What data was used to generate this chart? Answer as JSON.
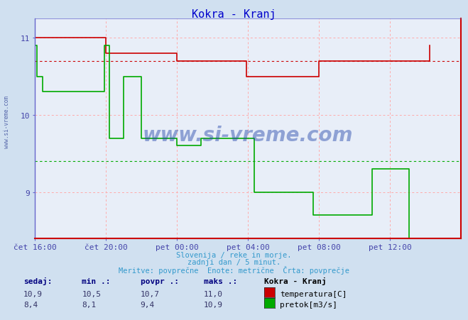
{
  "title": "Kokra - Kranj",
  "title_color": "#0000cc",
  "bg_color": "#d0e0f0",
  "plot_bg_color": "#e8eef8",
  "xlim": [
    0,
    288
  ],
  "ylim": [
    8.4,
    11.25
  ],
  "yticks": [
    9,
    10,
    11
  ],
  "xtick_labels": [
    "čet 16:00",
    "čet 20:00",
    "pet 00:00",
    "pet 04:00",
    "pet 08:00",
    "pet 12:00"
  ],
  "xtick_positions": [
    0,
    48,
    96,
    144,
    192,
    240
  ],
  "tick_color": "#4444aa",
  "subtitle1": "Slovenija / reke in morje.",
  "subtitle2": "zadnji dan / 5 minut.",
  "subtitle3": "Meritve: povprečne  Enote: metrične  Črta: povprečje",
  "subtitle_color": "#3399cc",
  "watermark": "www.si-vreme.com",
  "watermark_color": "#2244aa",
  "temp_color": "#cc0000",
  "flow_color": "#00aa00",
  "avg_temp": 10.7,
  "avg_flow": 9.4,
  "grid_color": "#ffaaaa",
  "spine_bottom_color": "#cc0000",
  "spine_left_color": "#6666cc",
  "temp_data": [
    11.0,
    11.0,
    11.0,
    11.0,
    11.0,
    11.0,
    11.0,
    11.0,
    11.0,
    11.0,
    11.0,
    11.0,
    11.0,
    11.0,
    11.0,
    11.0,
    11.0,
    11.0,
    11.0,
    11.0,
    11.0,
    11.0,
    11.0,
    11.0,
    11.0,
    11.0,
    11.0,
    11.0,
    11.0,
    11.0,
    11.0,
    11.0,
    11.0,
    11.0,
    11.0,
    11.0,
    11.0,
    11.0,
    11.0,
    11.0,
    11.0,
    11.0,
    11.0,
    11.0,
    11.0,
    11.0,
    11.0,
    11.0,
    10.8,
    10.8,
    10.8,
    10.8,
    10.8,
    10.8,
    10.8,
    10.8,
    10.8,
    10.8,
    10.8,
    10.8,
    10.8,
    10.8,
    10.8,
    10.8,
    10.8,
    10.8,
    10.8,
    10.8,
    10.8,
    10.8,
    10.8,
    10.8,
    10.8,
    10.8,
    10.8,
    10.8,
    10.8,
    10.8,
    10.8,
    10.8,
    10.8,
    10.8,
    10.8,
    10.8,
    10.8,
    10.8,
    10.8,
    10.8,
    10.8,
    10.8,
    10.8,
    10.8,
    10.8,
    10.8,
    10.8,
    10.8,
    10.7,
    10.7,
    10.7,
    10.7,
    10.7,
    10.7,
    10.7,
    10.7,
    10.7,
    10.7,
    10.7,
    10.7,
    10.7,
    10.7,
    10.7,
    10.7,
    10.7,
    10.7,
    10.7,
    10.7,
    10.7,
    10.7,
    10.7,
    10.7,
    10.7,
    10.7,
    10.7,
    10.7,
    10.7,
    10.7,
    10.7,
    10.7,
    10.7,
    10.7,
    10.7,
    10.7,
    10.7,
    10.7,
    10.7,
    10.7,
    10.7,
    10.7,
    10.7,
    10.7,
    10.7,
    10.7,
    10.7,
    10.5,
    10.5,
    10.5,
    10.5,
    10.5,
    10.5,
    10.5,
    10.5,
    10.5,
    10.5,
    10.5,
    10.5,
    10.5,
    10.5,
    10.5,
    10.5,
    10.5,
    10.5,
    10.5,
    10.5,
    10.5,
    10.5,
    10.5,
    10.5,
    10.5,
    10.5,
    10.5,
    10.5,
    10.5,
    10.5,
    10.5,
    10.5,
    10.5,
    10.5,
    10.5,
    10.5,
    10.5,
    10.5,
    10.5,
    10.5,
    10.5,
    10.5,
    10.5,
    10.5,
    10.5,
    10.5,
    10.5,
    10.5,
    10.5,
    10.7,
    10.7,
    10.7,
    10.7,
    10.7,
    10.7,
    10.7,
    10.7,
    10.7,
    10.7,
    10.7,
    10.7,
    10.7,
    10.7,
    10.7,
    10.7,
    10.7,
    10.7,
    10.7,
    10.7,
    10.7,
    10.7,
    10.7,
    10.7,
    10.7,
    10.7,
    10.7,
    10.7,
    10.7,
    10.7,
    10.7,
    10.7,
    10.7,
    10.7,
    10.7,
    10.7,
    10.7,
    10.7,
    10.7,
    10.7,
    10.7,
    10.7,
    10.7,
    10.7,
    10.7,
    10.7,
    10.7,
    10.7,
    10.7,
    10.7,
    10.7,
    10.7,
    10.7,
    10.7,
    10.7,
    10.7,
    10.7,
    10.7,
    10.7,
    10.7,
    10.7,
    10.7,
    10.7,
    10.7,
    10.7,
    10.7,
    10.7,
    10.7,
    10.7,
    10.7,
    10.7,
    10.7,
    10.7,
    10.7,
    10.7,
    10.9
  ],
  "flow_data": [
    10.9,
    10.5,
    10.5,
    10.5,
    10.5,
    10.3,
    10.3,
    10.3,
    10.3,
    10.3,
    10.3,
    10.3,
    10.3,
    10.3,
    10.3,
    10.3,
    10.3,
    10.3,
    10.3,
    10.3,
    10.3,
    10.3,
    10.3,
    10.3,
    10.3,
    10.3,
    10.3,
    10.3,
    10.3,
    10.3,
    10.3,
    10.3,
    10.3,
    10.3,
    10.3,
    10.3,
    10.3,
    10.3,
    10.3,
    10.3,
    10.3,
    10.3,
    10.3,
    10.3,
    10.3,
    10.3,
    10.3,
    10.9,
    10.9,
    10.9,
    9.7,
    9.7,
    9.7,
    9.7,
    9.7,
    9.7,
    9.7,
    9.7,
    9.7,
    9.7,
    10.5,
    10.5,
    10.5,
    10.5,
    10.5,
    10.5,
    10.5,
    10.5,
    10.5,
    10.5,
    10.5,
    10.5,
    9.7,
    9.7,
    9.7,
    9.7,
    9.7,
    9.7,
    9.7,
    9.7,
    9.7,
    9.7,
    9.7,
    9.7,
    9.7,
    9.7,
    9.7,
    9.7,
    9.7,
    9.7,
    9.7,
    9.7,
    9.7,
    9.7,
    9.7,
    9.7,
    9.6,
    9.6,
    9.6,
    9.6,
    9.6,
    9.6,
    9.6,
    9.6,
    9.6,
    9.6,
    9.6,
    9.6,
    9.6,
    9.6,
    9.6,
    9.6,
    9.7,
    9.7,
    9.7,
    9.7,
    9.7,
    9.7,
    9.7,
    9.7,
    9.7,
    9.7,
    9.7,
    9.7,
    9.7,
    9.7,
    9.7,
    9.7,
    9.7,
    9.7,
    9.7,
    9.7,
    9.7,
    9.7,
    9.7,
    9.7,
    9.7,
    9.7,
    9.7,
    9.7,
    9.7,
    9.7,
    9.7,
    9.7,
    9.7,
    9.7,
    9.7,
    9.7,
    9.0,
    9.0,
    9.0,
    9.0,
    9.0,
    9.0,
    9.0,
    9.0,
    9.0,
    9.0,
    9.0,
    9.0,
    9.0,
    9.0,
    9.0,
    9.0,
    9.0,
    9.0,
    9.0,
    9.0,
    9.0,
    9.0,
    9.0,
    9.0,
    9.0,
    9.0,
    9.0,
    9.0,
    9.0,
    9.0,
    9.0,
    9.0,
    9.0,
    9.0,
    9.0,
    9.0,
    9.0,
    9.0,
    9.0,
    9.0,
    8.7,
    8.7,
    8.7,
    8.7,
    8.7,
    8.7,
    8.7,
    8.7,
    8.7,
    8.7,
    8.7,
    8.7,
    8.7,
    8.7,
    8.7,
    8.7,
    8.7,
    8.7,
    8.7,
    8.7,
    8.7,
    8.7,
    8.7,
    8.7,
    8.7,
    8.7,
    8.7,
    8.7,
    8.7,
    8.7,
    8.7,
    8.7,
    8.7,
    8.7,
    8.7,
    8.7,
    8.7,
    8.7,
    8.7,
    8.7,
    9.3,
    9.3,
    9.3,
    9.3,
    9.3,
    9.3,
    9.3,
    9.3,
    9.3,
    9.3,
    9.3,
    9.3,
    9.3,
    9.3,
    9.3,
    9.3,
    9.3,
    9.3,
    9.3,
    9.3,
    9.3,
    9.3,
    9.3,
    9.3,
    9.3,
    8.4,
    8.4,
    8.4,
    8.4,
    8.4,
    8.4,
    8.4,
    8.4,
    8.4,
    8.4,
    8.4,
    8.4,
    8.4,
    8.4,
    8.4
  ]
}
